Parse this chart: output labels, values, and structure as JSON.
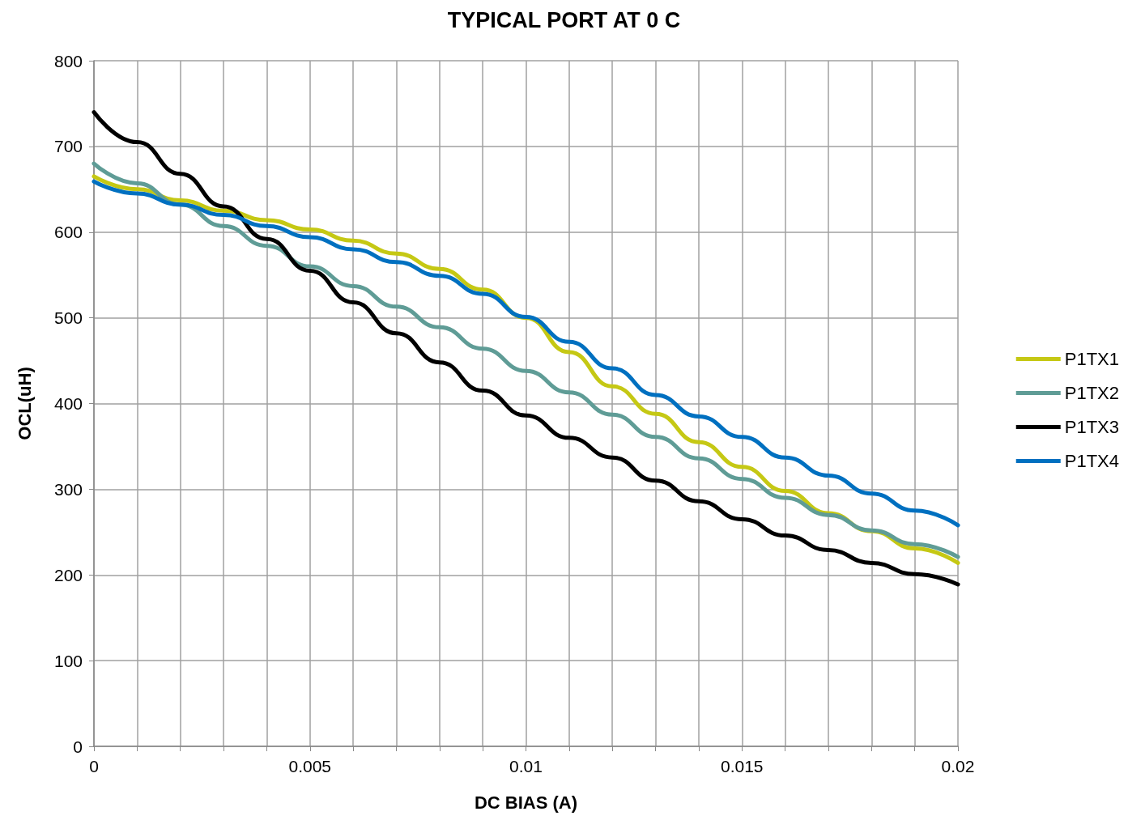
{
  "chart_data": {
    "type": "line",
    "title": "TYPICAL PORT AT 0 C",
    "xlabel": "DC BIAS (A)",
    "ylabel": "OCL(uH)",
    "x": [
      0,
      0.001,
      0.002,
      0.003,
      0.004,
      0.005,
      0.006,
      0.007,
      0.008,
      0.009,
      0.01,
      0.011,
      0.012,
      0.013,
      0.014,
      0.015,
      0.016,
      0.017,
      0.018,
      0.019,
      0.02
    ],
    "series": [
      {
        "name": "P1TX1",
        "color": "#c5c814",
        "values": [
          665,
          650,
          637,
          625,
          614,
          603,
          590,
          575,
          557,
          533,
          500,
          460,
          420,
          388,
          355,
          326,
          298,
          272,
          251,
          231,
          214
        ]
      },
      {
        "name": "P1TX2",
        "color": "#5f9c96",
        "values": [
          680,
          657,
          632,
          607,
          584,
          560,
          537,
          513,
          489,
          464,
          438,
          413,
          387,
          361,
          336,
          312,
          290,
          270,
          252,
          236,
          221
        ]
      },
      {
        "name": "P1TX3",
        "color": "#000000",
        "values": [
          740,
          705,
          668,
          630,
          592,
          555,
          518,
          482,
          448,
          415,
          386,
          360,
          337,
          310,
          286,
          265,
          246,
          229,
          214,
          201,
          189
        ]
      },
      {
        "name": "P1TX4",
        "color": "#0070c0",
        "values": [
          659,
          645,
          632,
          620,
          607,
          594,
          580,
          565,
          549,
          528,
          501,
          472,
          441,
          410,
          385,
          361,
          337,
          316,
          295,
          275,
          258
        ]
      }
    ],
    "xlim": [
      0,
      0.02
    ],
    "xticks": [
      0,
      {
        "value": 0.001,
        "label": null
      },
      {
        "value": 0.002,
        "label": null
      },
      {
        "value": 0.003,
        "label": null
      },
      {
        "value": 0.004,
        "label": null
      },
      0.005,
      {
        "value": 0.006,
        "label": null
      },
      {
        "value": 0.007,
        "label": null
      },
      {
        "value": 0.008,
        "label": null
      },
      {
        "value": 0.009,
        "label": null
      },
      0.01,
      {
        "value": 0.011,
        "label": null
      },
      {
        "value": 0.012,
        "label": null
      },
      {
        "value": 0.013,
        "label": null
      },
      {
        "value": 0.014,
        "label": null
      },
      0.015,
      {
        "value": 0.016,
        "label": null
      },
      {
        "value": 0.017,
        "label": null
      },
      {
        "value": 0.018,
        "label": null
      },
      {
        "value": 0.019,
        "label": null
      },
      0.02
    ],
    "ylim": [
      0,
      800
    ],
    "yticks": [
      0,
      100,
      200,
      300,
      400,
      500,
      600,
      700,
      800
    ],
    "grid": true,
    "legend": "right",
    "marker": "none",
    "line_style": "solid"
  }
}
